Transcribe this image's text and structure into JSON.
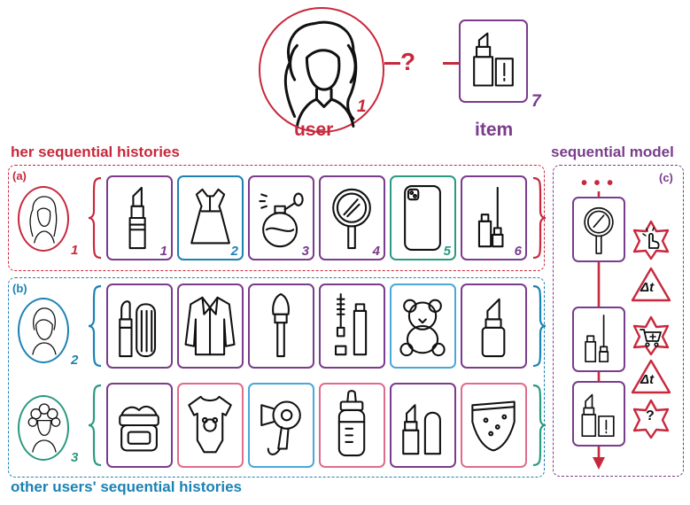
{
  "top": {
    "user_label": "user",
    "item_label": "item",
    "question": "?",
    "user_number": "1",
    "item_number": "7"
  },
  "sections": {
    "her_title": "her sequential histories",
    "other_title": "other users' sequential histories",
    "model_title": "sequential model",
    "tag_a": "(a)",
    "tag_b": "(b)",
    "tag_c": "(c)"
  },
  "rows": {
    "a": {
      "user_number": "1",
      "items": [
        {
          "icon": "lipstick-icon",
          "color": "#7a3c8c",
          "number": "1"
        },
        {
          "icon": "dress-icon",
          "color": "#1b82b4",
          "number": "2"
        },
        {
          "icon": "perfume-icon",
          "color": "#7a3c8c",
          "number": "3"
        },
        {
          "icon": "hand-mirror-icon",
          "color": "#7a3c8c",
          "number": "4"
        },
        {
          "icon": "phone-icon",
          "color": "#2a9a82",
          "number": "5"
        },
        {
          "icon": "mascara-icon",
          "color": "#7a3c8c",
          "number": "6"
        }
      ]
    },
    "b": {
      "user_number": "2",
      "items": [
        {
          "icon": "lipstick-set-icon",
          "color": "#7a3c8c"
        },
        {
          "icon": "jacket-icon",
          "color": "#7a3c8c"
        },
        {
          "icon": "makeup-brush-icon",
          "color": "#7a3c8c"
        },
        {
          "icon": "mascara-icon",
          "color": "#7a3c8c"
        },
        {
          "icon": "teddy-bear-icon",
          "color": "#4aa8d8"
        },
        {
          "icon": "cosmetic-bottle-icon",
          "color": "#7a3c8c"
        }
      ]
    },
    "c": {
      "user_number": "3",
      "items": [
        {
          "icon": "cream-jar-icon",
          "color": "#7a3c8c"
        },
        {
          "icon": "baby-bodysuit-icon",
          "color": "#e06c8c"
        },
        {
          "icon": "hair-dryer-icon",
          "color": "#4aa8d8"
        },
        {
          "icon": "baby-bottle-icon",
          "color": "#e06c8c"
        },
        {
          "icon": "lipstick-icon",
          "color": "#7a3c8c"
        },
        {
          "icon": "diaper-icon",
          "color": "#e06c8c"
        }
      ]
    }
  },
  "model": {
    "dots": "• • •",
    "delta_t": "Δt",
    "question": "?"
  },
  "colors": {
    "red": "#c8283c",
    "purple": "#7a3c8c",
    "blue": "#1b82b4",
    "light_blue": "#4aa8d8",
    "green": "#2a9a82",
    "pink": "#e06c8c"
  }
}
